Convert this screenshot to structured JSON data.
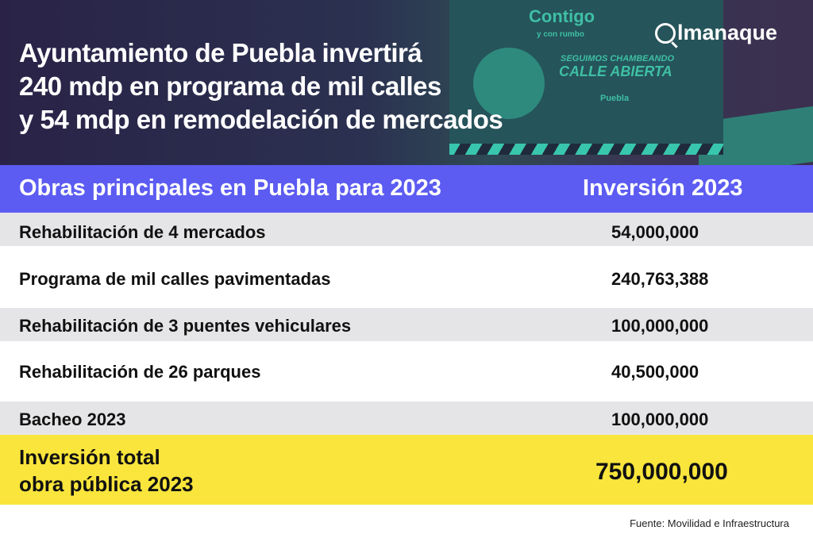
{
  "header": {
    "title_lines": [
      "Ayuntamiento de Puebla invertirá",
      "240 mdp en programa de mil calles",
      "y 54 mdp en remodelación de mercados"
    ],
    "logo": "almanaque"
  },
  "photo_sign": {
    "line1": "Contigo",
    "line2": "y con rumbo",
    "line3": "SEGUIMOS CHAMBEANDO",
    "line4": "CALLE ABIERTA",
    "line5": "Puebla"
  },
  "table": {
    "columns": [
      "Obras principales en Puebla para 2023",
      "Inversión 2023"
    ],
    "rows": [
      {
        "obra": "Rehabilitación de 4 mercados",
        "inversion": "54,000,000"
      },
      {
        "obra": "Programa de mil calles pavimentadas",
        "inversion": "240,763,388"
      },
      {
        "obra": "Rehabilitación de 3 puentes vehiculares",
        "inversion": "100,000,000"
      },
      {
        "obra": "Rehabilitación de 26 parques",
        "inversion": "40,500,000"
      },
      {
        "obra": "Bacheo 2023",
        "inversion": "100,000,000"
      }
    ],
    "total": {
      "label_lines": [
        "Inversión total",
        "obra pública 2023"
      ],
      "value": "750,000,000"
    }
  },
  "source": "Fuente: Movilidad e Infraestructura",
  "colors": {
    "header_band": "#5c5cf2",
    "total_band": "#f9e53c",
    "row_alt": "#e5e5e7"
  }
}
